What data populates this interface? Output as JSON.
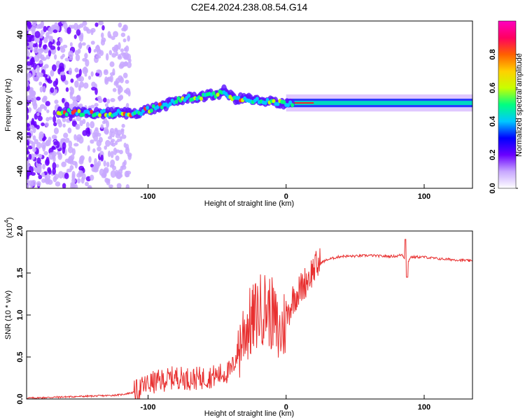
{
  "title": "C2E4.2024.238.08.54.G14",
  "chart_data": [
    {
      "type": "heatmap",
      "xlabel": "Height of straight line (km)",
      "ylabel": "Frequency (Hz)",
      "xlim": [
        -188,
        135
      ],
      "ylim": [
        -50,
        48
      ],
      "xticks": [
        -100,
        0,
        100
      ],
      "yticks": [
        40,
        20,
        0,
        -20,
        -40
      ],
      "grid": false,
      "colorbar": {
        "label": "Normalized spectral amplitude",
        "range": [
          0,
          1
        ],
        "ticks": [
          "0.0",
          "0.2",
          "0.4",
          "0.6",
          "0.8"
        ],
        "colors": [
          "#ffffff",
          "#c8a8ff",
          "#6a00ff",
          "#0000ff",
          "#00c8ff",
          "#00ff80",
          "#c8ff00",
          "#ffd000",
          "#ff6000",
          "#ff0060",
          "#ff00c0"
        ]
      },
      "ridge": {
        "x": [
          -165,
          -150,
          -130,
          -110,
          -100,
          -90,
          -80,
          -70,
          -60,
          -50,
          -45,
          -40,
          -35,
          -30,
          -25,
          -20,
          -15,
          -10,
          -5,
          0,
          10,
          20,
          40,
          60,
          80,
          100,
          120,
          135
        ],
        "y": [
          -5,
          -6,
          -6,
          -6,
          -4,
          -2,
          1,
          3,
          4,
          5,
          7,
          4,
          2,
          3,
          2,
          1,
          0,
          1,
          0,
          0,
          0,
          0,
          0,
          0,
          0,
          0,
          0,
          0
        ]
      }
    },
    {
      "type": "line",
      "xlabel": "Height of straight line (km)",
      "ylabel": "SNR (10 * v/v)",
      "y_scale_note": "(x10",
      "y_scale_exponent": "4",
      "xlim": [
        -188,
        135
      ],
      "ylim": [
        0,
        2.0
      ],
      "xticks": [
        -100,
        0,
        100
      ],
      "yticks": [
        "0.0",
        "0.5",
        "1.0",
        "1.5",
        "2.0"
      ],
      "grid": false,
      "series": [
        {
          "color": "#e83030",
          "x": [
            -188,
            -170,
            -150,
            -130,
            -120,
            -110,
            -100,
            -90,
            -80,
            -70,
            -60,
            -50,
            -40,
            -35,
            -30,
            -25,
            -20,
            -15,
            -10,
            -5,
            0,
            5,
            10,
            15,
            20,
            25,
            30,
            35,
            40,
            50,
            60,
            70,
            80,
            84,
            88,
            90,
            100,
            110,
            120,
            130,
            135
          ],
          "y": [
            0.01,
            0.02,
            0.03,
            0.04,
            0.05,
            0.08,
            0.18,
            0.22,
            0.26,
            0.24,
            0.25,
            0.28,
            0.33,
            0.55,
            0.85,
            0.9,
            1.05,
            1.1,
            1.0,
            0.75,
            0.95,
            1.2,
            1.3,
            1.42,
            1.55,
            1.62,
            1.66,
            1.68,
            1.7,
            1.7,
            1.71,
            1.7,
            1.7,
            1.72,
            1.62,
            1.69,
            1.69,
            1.67,
            1.66,
            1.65,
            1.64
          ]
        }
      ]
    }
  ]
}
